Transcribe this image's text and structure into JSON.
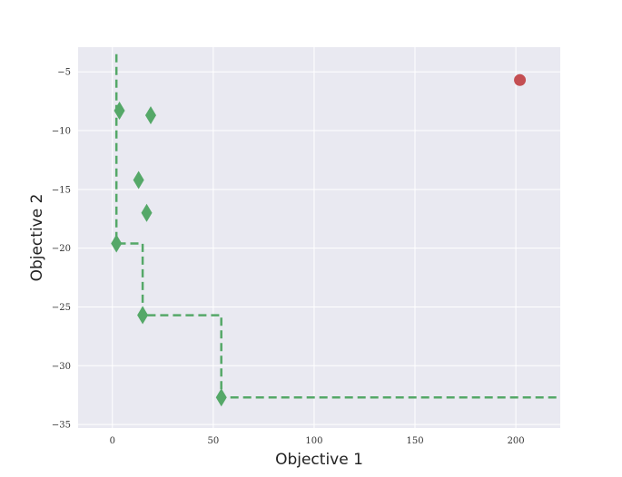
{
  "chart_data": {
    "type": "scatter",
    "title": "",
    "xlabel": "Objective 1",
    "ylabel": "Objective 2",
    "xlim": [
      -17,
      222
    ],
    "ylim": [
      -35.3,
      -2.9
    ],
    "xticks": [
      0,
      50,
      100,
      150,
      200
    ],
    "yticks": [
      -5,
      -10,
      -15,
      -20,
      -25,
      -30,
      -35
    ],
    "grid": true,
    "colors": {
      "background": "#e9e9f1",
      "grid": "#ffffff",
      "pareto": "#55a868",
      "reference": "#c44e52"
    },
    "series": [
      {
        "marker": "diamond",
        "color": "#55a868",
        "points": [
          {
            "x": 3.5,
            "y": -8.3
          },
          {
            "x": 19,
            "y": -8.7
          },
          {
            "x": 13,
            "y": -14.2
          },
          {
            "x": 17,
            "y": -17.0
          },
          {
            "x": 2,
            "y": -19.6
          },
          {
            "x": 15,
            "y": -25.7
          },
          {
            "x": 54,
            "y": -32.7
          }
        ]
      },
      {
        "marker": "circle",
        "color": "#c44e52",
        "points": [
          {
            "x": 202,
            "y": -5.7
          }
        ]
      }
    ],
    "frontier": {
      "style": "dashed",
      "color": "#55a868",
      "points": [
        {
          "x": 2,
          "y": -3.5
        },
        {
          "x": 2,
          "y": -19.6
        },
        {
          "x": 15,
          "y": -19.6
        },
        {
          "x": 15,
          "y": -25.7
        },
        {
          "x": 54,
          "y": -25.7
        },
        {
          "x": 54,
          "y": -32.7
        },
        {
          "x": 222,
          "y": -32.7
        }
      ]
    }
  }
}
